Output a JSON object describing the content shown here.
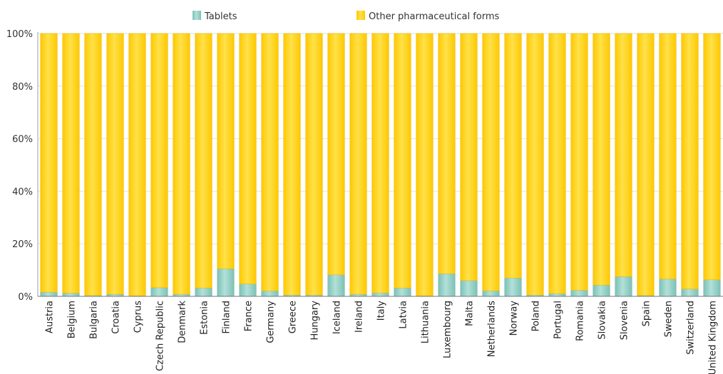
{
  "chart_data": {
    "type": "bar",
    "stacked": true,
    "percent": true,
    "legend_position": "top",
    "grid": true,
    "ylim": [
      0,
      100
    ],
    "y_ticks": [
      "0%",
      "20%",
      "40%",
      "60%",
      "80%",
      "100%"
    ],
    "categories": [
      "Austria",
      "Belgium",
      "Bulgaria",
      "Croatia",
      "Cyprus",
      "Czech Republic",
      "Denmark",
      "Estonia",
      "Finland",
      "France",
      "Germany",
      "Greece",
      "Hungary",
      "Iceland",
      "Ireland",
      "Italy",
      "Latvia",
      "Lithuania",
      "Luxembourg",
      "Malta",
      "Netherlands",
      "Norway",
      "Poland",
      "Portugal",
      "Romania",
      "Slovakia",
      "Slovenia",
      "Spain",
      "Sweden",
      "Switzerland",
      "United Kingdom"
    ],
    "series": [
      {
        "name": "Tablets",
        "color": "#8ecdc2",
        "values": [
          1.6,
          1.2,
          0.3,
          0.8,
          0.2,
          3.3,
          0.8,
          3.2,
          10.5,
          4.7,
          2.1,
          0.5,
          0.5,
          8.2,
          0.8,
          1.3,
          3.2,
          0.2,
          8.6,
          6.0,
          2.1,
          7.0,
          0.5,
          1.0,
          2.3,
          4.3,
          7.5,
          0.3,
          6.6,
          2.8,
          6.3
        ]
      },
      {
        "name": "Other pharmaceutical forms",
        "color": "#ffd21a",
        "values": [
          98.4,
          98.8,
          99.7,
          99.2,
          99.8,
          96.7,
          99.2,
          96.8,
          89.5,
          95.3,
          97.9,
          99.5,
          99.5,
          91.8,
          99.2,
          98.7,
          96.8,
          99.8,
          91.4,
          94.0,
          97.9,
          93.0,
          99.5,
          99.0,
          97.7,
          95.7,
          92.5,
          99.7,
          93.4,
          97.2,
          93.7
        ]
      }
    ]
  }
}
